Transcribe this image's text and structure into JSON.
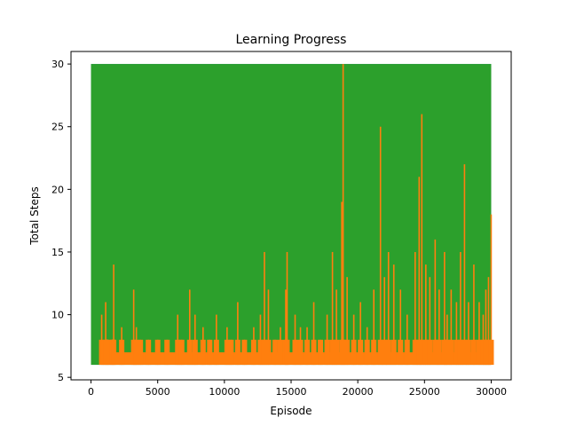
{
  "chart_data": {
    "type": "line",
    "title": "Learning Progress",
    "xlabel": "Episode",
    "ylabel": "Total Steps",
    "xlim": [
      -1500,
      31500
    ],
    "ylim": [
      4.8,
      31.0
    ],
    "xticks": [
      0,
      5000,
      10000,
      15000,
      20000,
      25000,
      30000
    ],
    "yticks": [
      5,
      10,
      15,
      20,
      25,
      30
    ],
    "grid": false,
    "legend": "none",
    "series": [
      {
        "color": "#1f77b4",
        "min_steps": 6,
        "max_steps": 30,
        "x_range": [
          0,
          30000
        ],
        "visible_gaps": [
          [
            1150,
            6.9,
            8.0
          ],
          [
            1550,
            6.9,
            8.0
          ],
          [
            1650,
            6.9,
            8.0
          ]
        ]
      },
      {
        "color": "#2ca02c",
        "min_steps": 6,
        "max_steps": 30,
        "x_range": [
          0,
          30000
        ]
      },
      {
        "color": "#ff7f0e",
        "min_steps": 6,
        "baseline_steps": 7,
        "x_range": [
          0,
          30000
        ],
        "spikes": [
          [
            800,
            10
          ],
          [
            1100,
            11
          ],
          [
            1300,
            8
          ],
          [
            1600,
            8
          ],
          [
            1700,
            14
          ],
          [
            2300,
            9
          ],
          [
            3200,
            12
          ],
          [
            3400,
            9
          ],
          [
            3700,
            8
          ],
          [
            4300,
            8
          ],
          [
            5000,
            8
          ],
          [
            5700,
            8
          ],
          [
            6500,
            10
          ],
          [
            6800,
            8
          ],
          [
            7400,
            12
          ],
          [
            7800,
            10
          ],
          [
            8400,
            9
          ],
          [
            8900,
            8
          ],
          [
            9400,
            10
          ],
          [
            10200,
            9
          ],
          [
            10500,
            8
          ],
          [
            11000,
            11
          ],
          [
            11500,
            8
          ],
          [
            12200,
            9
          ],
          [
            12700,
            10
          ],
          [
            13000,
            15
          ],
          [
            13300,
            12
          ],
          [
            13800,
            8
          ],
          [
            14200,
            9
          ],
          [
            14600,
            12
          ],
          [
            14700,
            15
          ],
          [
            15300,
            10
          ],
          [
            15700,
            9
          ],
          [
            16200,
            9
          ],
          [
            16700,
            11
          ],
          [
            17200,
            8
          ],
          [
            17700,
            10
          ],
          [
            18100,
            15
          ],
          [
            18400,
            12
          ],
          [
            18800,
            19
          ],
          [
            18900,
            30
          ],
          [
            19200,
            13
          ],
          [
            19700,
            10
          ],
          [
            20200,
            11
          ],
          [
            20700,
            9
          ],
          [
            21200,
            12
          ],
          [
            21700,
            25
          ],
          [
            22000,
            13
          ],
          [
            22300,
            15
          ],
          [
            22700,
            14
          ],
          [
            23200,
            12
          ],
          [
            23700,
            10
          ],
          [
            24300,
            15
          ],
          [
            24600,
            21
          ],
          [
            24800,
            26
          ],
          [
            25100,
            14
          ],
          [
            25400,
            13
          ],
          [
            25800,
            16
          ],
          [
            26100,
            12
          ],
          [
            26500,
            15
          ],
          [
            26700,
            10
          ],
          [
            27000,
            12
          ],
          [
            27400,
            11
          ],
          [
            27700,
            15
          ],
          [
            28000,
            22
          ],
          [
            28300,
            11
          ],
          [
            28700,
            14
          ],
          [
            29100,
            11
          ],
          [
            29400,
            10
          ],
          [
            29600,
            12
          ],
          [
            29800,
            13
          ],
          [
            30000,
            18
          ]
        ]
      }
    ]
  }
}
